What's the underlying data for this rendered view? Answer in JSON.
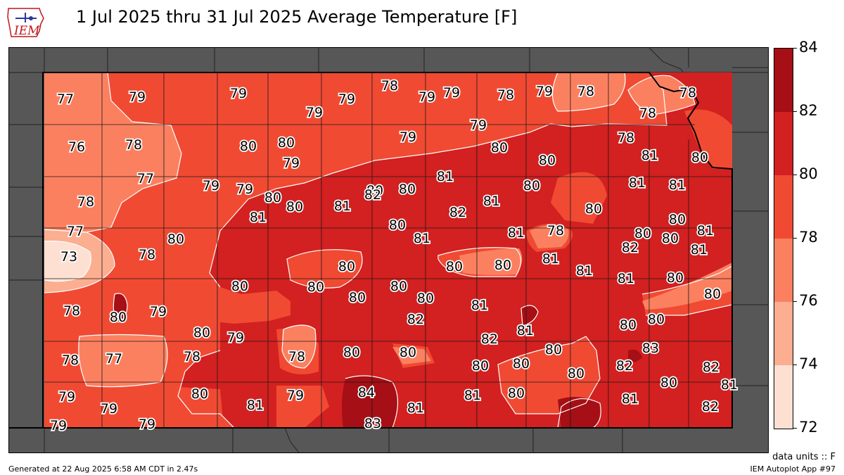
{
  "title": "1 Jul 2025 thru 31 Jul 2025 Average Temperature [F]",
  "logo_text": "IEM",
  "footer": {
    "generated": "Generated at 22 Aug 2025 6:58 AM CDT in 2.47s",
    "app": "IEM Autoplot App #97",
    "units": "data units :: F"
  },
  "colorbar": {
    "ticks": [
      "84",
      "82",
      "80",
      "78",
      "76",
      "74",
      "72"
    ],
    "levels": [
      72,
      74,
      76,
      78,
      80,
      82,
      84
    ],
    "colors": [
      "#fee0d2",
      "#fcae91",
      "#fb8060",
      "#f04a33",
      "#d32020",
      "#a50f15"
    ]
  },
  "map_colors": {
    "background": "#575757",
    "county_line": "#1a1a1a",
    "contour_line": "#ffffff"
  },
  "station_values": [
    "77",
    "79",
    "79",
    "79",
    "79",
    "78",
    "79",
    "79",
    "78",
    "79",
    "78",
    "78",
    "76",
    "78",
    "80",
    "80",
    "79",
    "79",
    "80",
    "78",
    "80",
    "79",
    "80",
    "78",
    "81",
    "80",
    "78",
    "77",
    "79",
    "79",
    "80",
    "80",
    "81",
    "82",
    "80",
    "81",
    "82",
    "81",
    "80",
    "81",
    "81",
    "77",
    "81",
    "80",
    "81",
    "80",
    "80",
    "81",
    "82",
    "81",
    "80",
    "78",
    "80",
    "80",
    "82",
    "81",
    "73",
    "78",
    "80",
    "80",
    "80",
    "80",
    "80",
    "81",
    "82",
    "81",
    "81",
    "81",
    "80",
    "78",
    "80",
    "79",
    "80",
    "80",
    "80",
    "80",
    "81",
    "80",
    "80",
    "80",
    "80",
    "81",
    "80",
    "79",
    "82",
    "81",
    "82",
    "82",
    "80",
    "81",
    "82",
    "80",
    "81",
    "78",
    "77",
    "78",
    "78",
    "80",
    "80",
    "82",
    "80",
    "83",
    "82",
    "80",
    "80",
    "80",
    "79",
    "79",
    "80",
    "84",
    "81",
    "79",
    "81",
    "81",
    "82",
    "81",
    "80",
    "81",
    "79",
    "79",
    "83",
    "81",
    "82"
  ]
}
